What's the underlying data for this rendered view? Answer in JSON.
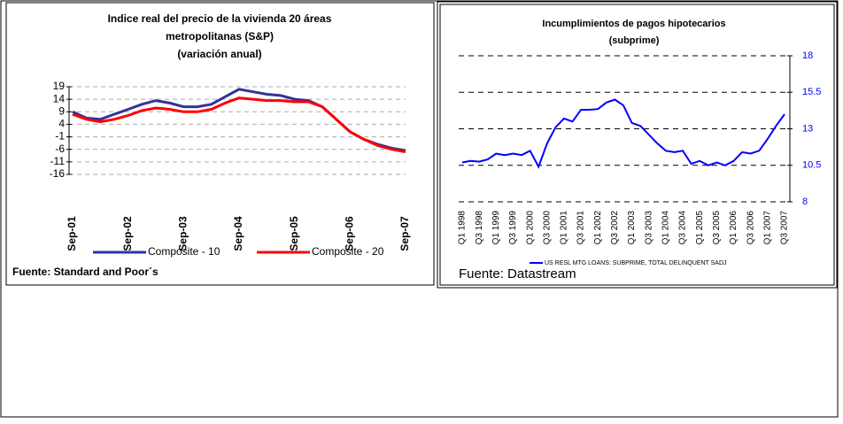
{
  "chart_data": [
    {
      "type": "line",
      "title": [
        "Indice real  del precio de la vivienda 20 áreas",
        "metropolitanas (S&P)",
        "(variación anual)"
      ],
      "categories": [
        "Sep-01",
        null,
        null,
        null,
        "Sep-02",
        null,
        null,
        null,
        "Sep-03",
        null,
        null,
        null,
        "Sep-04",
        null,
        null,
        null,
        "Sep-05",
        null,
        null,
        null,
        "Sep-06",
        null,
        null,
        null,
        "Sep-07"
      ],
      "series": [
        {
          "name": "Composite - 10",
          "color": "#333399",
          "values": [
            9,
            6.5,
            6,
            8,
            10,
            12,
            13.5,
            12.5,
            11,
            11,
            12,
            15,
            18,
            17,
            16,
            15.5,
            14,
            13.5,
            11,
            6,
            1,
            -2,
            -4,
            -5.5,
            -6.5
          ]
        },
        {
          "name": "Composite - 20",
          "color": "#ff0000",
          "values": [
            8,
            6,
            5,
            6,
            7.5,
            9.5,
            10.5,
            10,
            9,
            9,
            10,
            12.5,
            14.5,
            14,
            13.5,
            13.5,
            13,
            13,
            11,
            6,
            1,
            -2,
            -4.5,
            -6,
            -7
          ]
        }
      ],
      "ylim": [
        -16,
        19
      ],
      "yticks": [
        19,
        14,
        9,
        4,
        -1,
        -6,
        -11,
        -16
      ],
      "grid": true,
      "y_axis_side": "left",
      "source": "Fuente: Standard and Poor´s"
    },
    {
      "type": "line",
      "title": [
        "Incumplimientos de pagos hipotecarios",
        "(subprime)"
      ],
      "categories": [
        "Q1 1998",
        null,
        "Q3 1998",
        null,
        "Q1 1999",
        null,
        "Q3 1999",
        null,
        "Q1 2000",
        null,
        "Q3 2000",
        null,
        "Q1 2001",
        null,
        "Q3 2001",
        null,
        "Q1 2002",
        null,
        "Q3 2002",
        null,
        "Q1 2003",
        null,
        "Q3 2003",
        null,
        "Q1 2004",
        null,
        "Q3 2004",
        null,
        "Q1 2005",
        null,
        "Q3 2005",
        null,
        "Q1 2006",
        null,
        "Q3 2006",
        null,
        "Q1 2007",
        null,
        "Q3 2007"
      ],
      "series": [
        {
          "name": "US RESL MTG LOANS: SUBPRIME, TOTAL DELINQUENT SADJ",
          "color": "#0000ff",
          "values": [
            10.7,
            10.8,
            10.75,
            10.9,
            11.3,
            11.2,
            11.3,
            11.2,
            11.5,
            10.4,
            12.0,
            13.1,
            13.7,
            13.5,
            14.3,
            14.3,
            14.35,
            14.8,
            15.0,
            14.6,
            13.4,
            13.2,
            12.6,
            12.0,
            11.5,
            11.4,
            11.5,
            10.6,
            10.8,
            10.5,
            10.7,
            10.5,
            10.8,
            11.4,
            11.3,
            11.5,
            12.3,
            13.2,
            14.0
          ]
        }
      ],
      "ylim": [
        8,
        18
      ],
      "yticks": [
        8,
        10.5,
        13,
        15.5,
        18
      ],
      "grid": true,
      "y_axis_side": "right",
      "source": "Fuente: Datastream"
    }
  ]
}
